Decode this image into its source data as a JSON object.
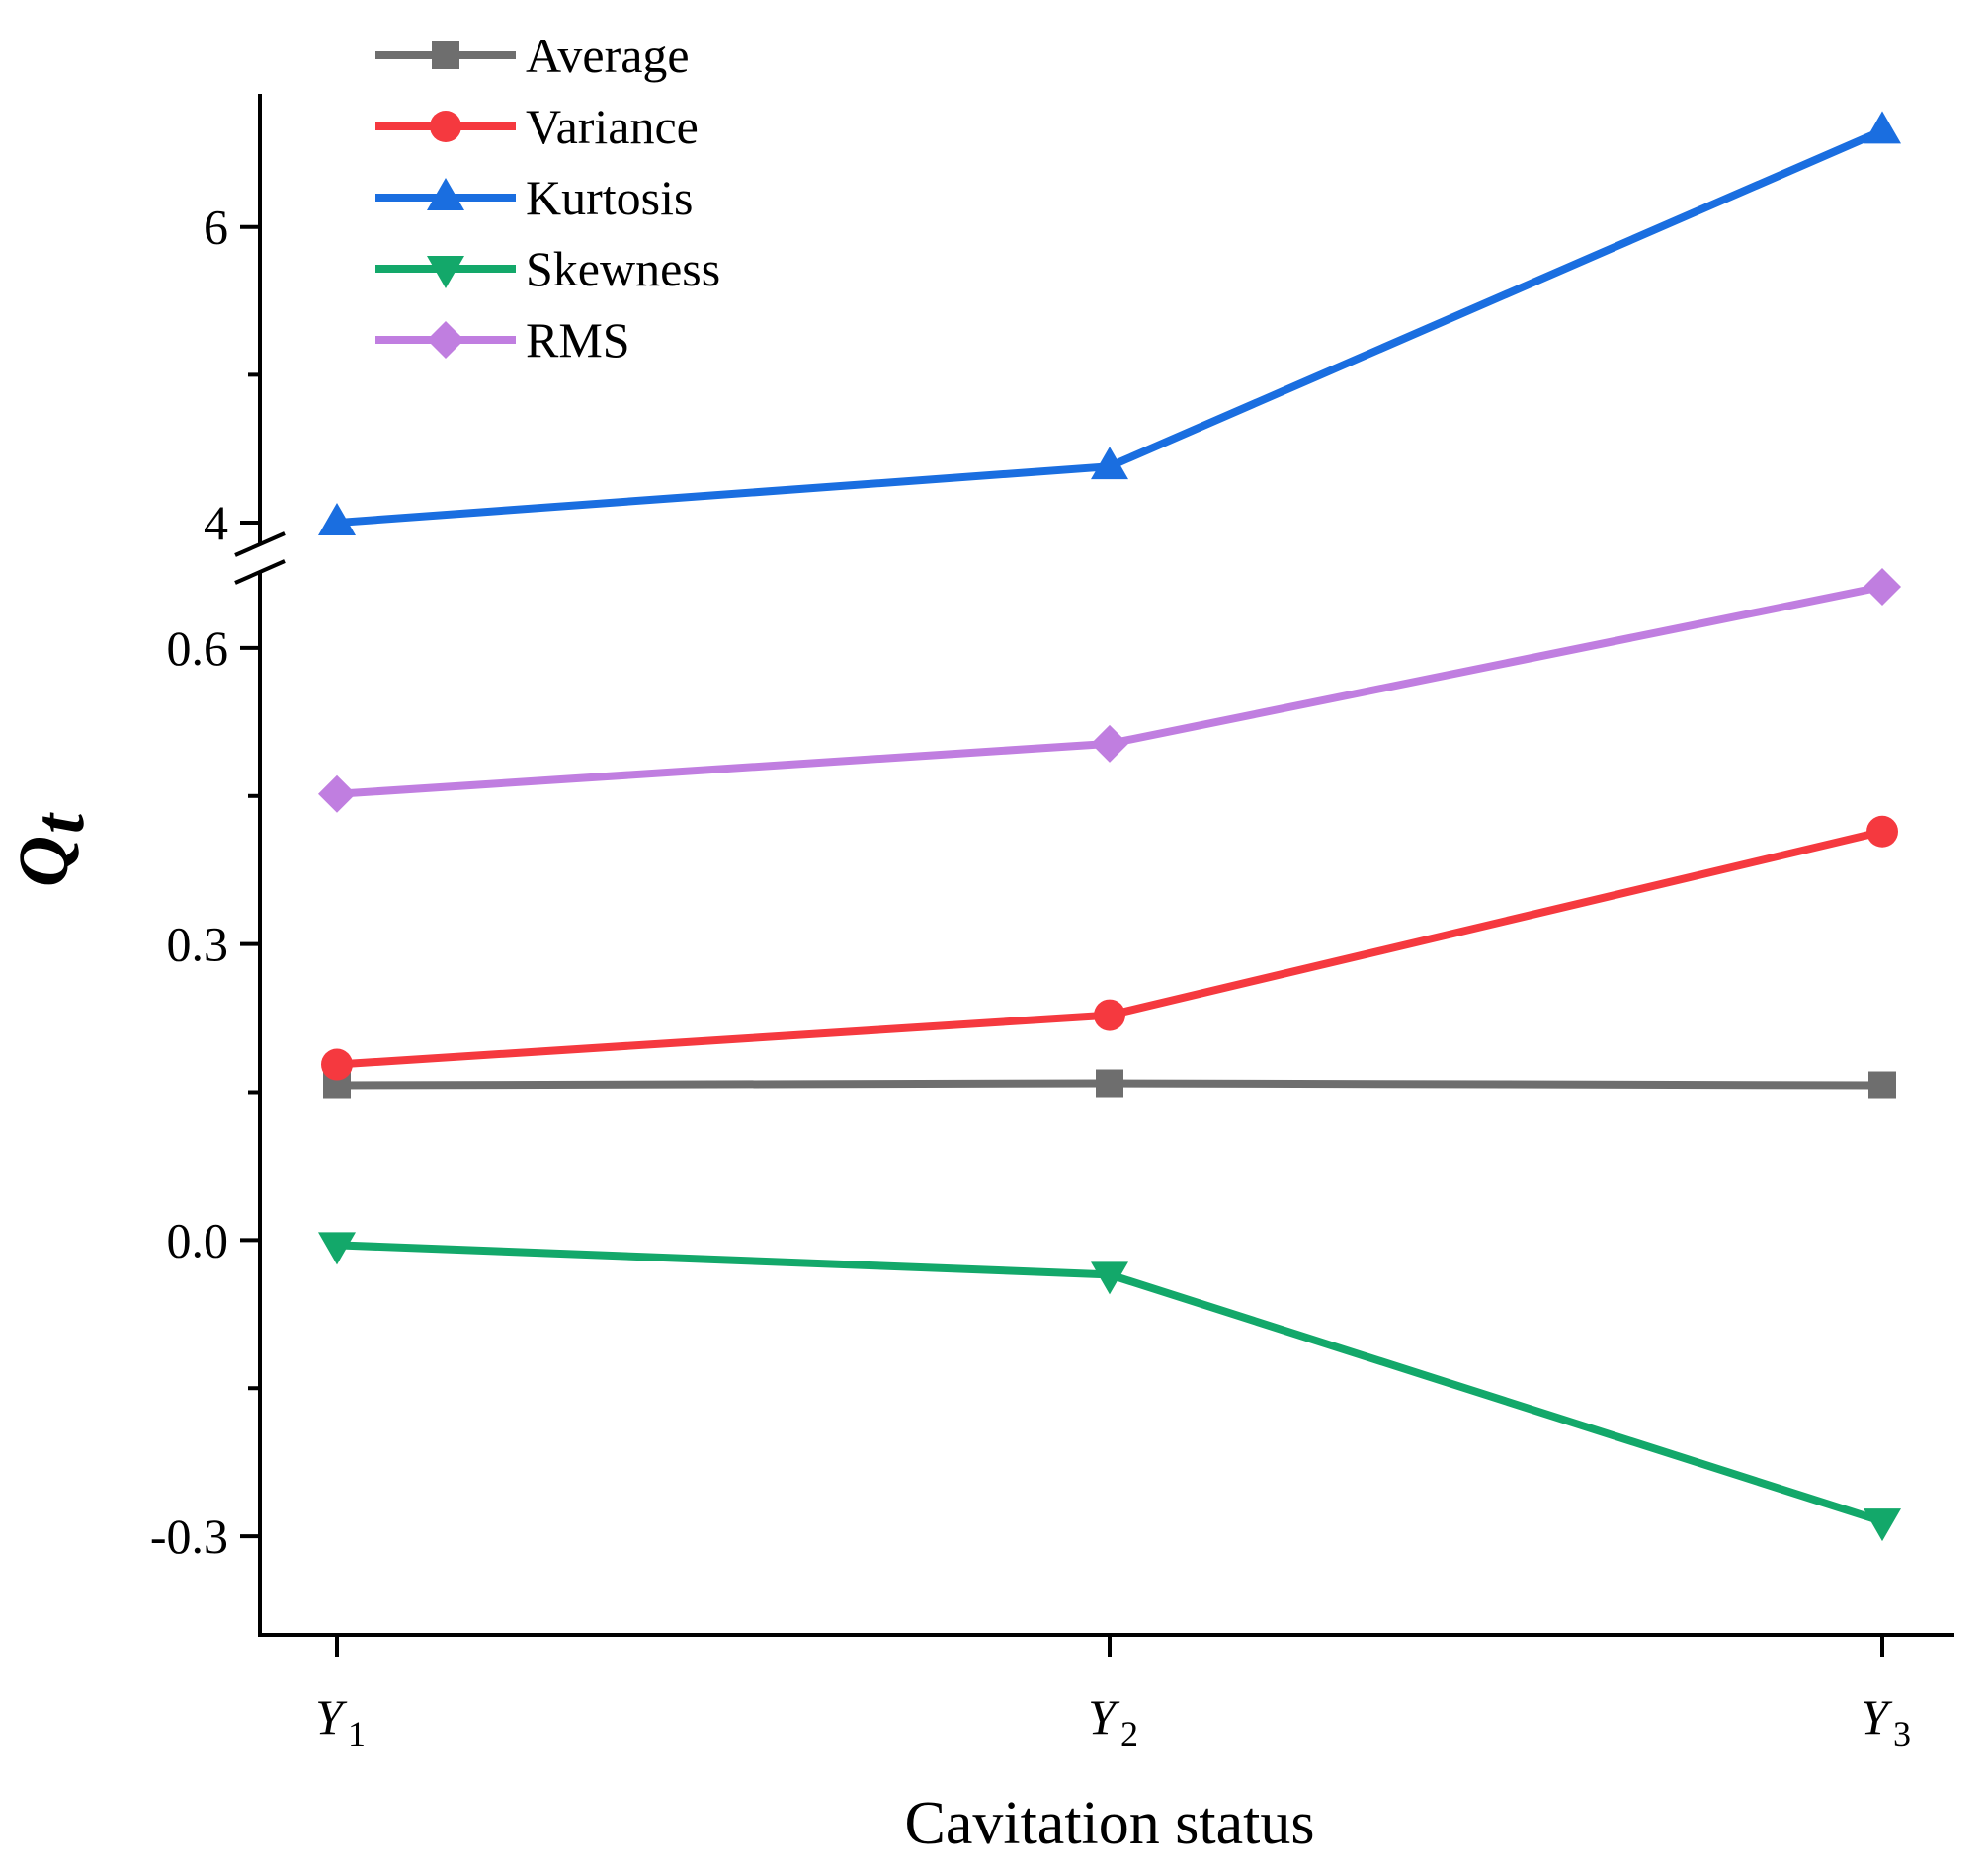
{
  "chart_data": {
    "type": "line",
    "title": "",
    "xlabel": "Cavitation status",
    "ylabel": {
      "main": "Q",
      "sub": "t"
    },
    "categories": [
      {
        "base": "Y",
        "sub": "1"
      },
      {
        "base": "Y",
        "sub": "2"
      },
      {
        "base": "Y",
        "sub": "3"
      }
    ],
    "axis_break": {
      "lower_range": [
        -0.4,
        0.68
      ],
      "upper_range": [
        3.82,
        6.9
      ]
    },
    "y_ticks_lower": [
      "-0.3",
      "0.0",
      "0.3",
      "0.6"
    ],
    "y_ticks_upper": [
      "4",
      "6"
    ],
    "legend_position": "top-left",
    "series": [
      {
        "name": "Average",
        "color": "#6e6e6e",
        "marker": "square",
        "values": [
          0.157,
          0.159,
          0.157
        ]
      },
      {
        "name": "Variance",
        "color": "#f5393f",
        "marker": "circle",
        "values": [
          0.178,
          0.228,
          0.414
        ]
      },
      {
        "name": "Kurtosis",
        "color": "#1a6ee0",
        "marker": "triangle-up",
        "values": [
          4.0,
          4.38,
          6.65
        ]
      },
      {
        "name": "Skewness",
        "color": "#13a86a",
        "marker": "triangle-down",
        "values": [
          -0.005,
          -0.035,
          -0.285
        ]
      },
      {
        "name": "RMS",
        "color": "#c07ee0",
        "marker": "diamond",
        "values": [
          0.452,
          0.503,
          0.662
        ]
      }
    ]
  }
}
